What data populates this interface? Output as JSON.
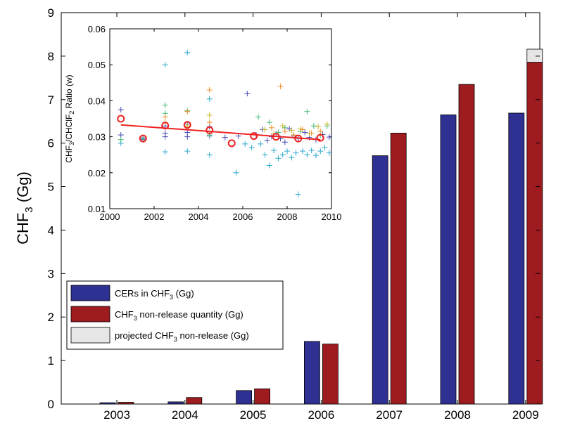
{
  "chart_data": [
    {
      "type": "bar",
      "ylabel_main": "CHF",
      "ylabel_sub": "3",
      "ylabel_unit": " (Gg)",
      "categories": [
        "2003",
        "2004",
        "2005",
        "2006",
        "2007",
        "2008",
        "2009"
      ],
      "ylim": [
        0,
        9
      ],
      "yticks": [
        "0",
        "1",
        "2",
        "3",
        "4",
        "5",
        "6",
        "7",
        "8",
        "9"
      ],
      "series": [
        {
          "name": "CERs in CHF3 (Gg)",
          "color": "#2e3192",
          "values": [
            0.03,
            0.05,
            0.31,
            1.44,
            5.71,
            6.65,
            6.69
          ]
        },
        {
          "name": "CHF3 non-release quantity (Gg)",
          "color": "#9e1b20",
          "values": [
            0.04,
            0.15,
            0.35,
            1.38,
            6.23,
            7.35,
            7.86
          ]
        },
        {
          "name": "projected CHF3 non-release (Gg)",
          "color": "#e6e6e6",
          "stacked_on": "CHF3 non-release quantity (Gg)",
          "values": [
            0,
            0,
            0,
            0,
            0,
            0,
            0.3
          ]
        }
      ],
      "legend": {
        "placement": "lower-left",
        "items": [
          {
            "pre": "CERs in CHF",
            "sub": "3",
            "post": " (Gg)",
            "color": "#2e3192"
          },
          {
            "pre": "CHF",
            "sub": "3",
            "post": " non-release quantity (Gg)",
            "color": "#9e1b20"
          },
          {
            "pre": "projected CHF",
            "sub": "3",
            "post": " non-release (Gg)",
            "color": "#e6e6e6"
          }
        ]
      }
    },
    {
      "type": "scatter",
      "inset": true,
      "ylabel": "CHF3/CHClF2 Ratio (w)",
      "ylabel_parts": [
        {
          "t": "CHF",
          "sub": false
        },
        {
          "t": "3",
          "sub": true
        },
        {
          "t": "/CHClF",
          "sub": false
        },
        {
          "t": "2",
          "sub": true
        },
        {
          "t": " Ratio (w)",
          "sub": false
        }
      ],
      "xlim": [
        2000,
        2010
      ],
      "ylim": [
        0.01,
        0.06
      ],
      "xticks": [
        "2000",
        "2002",
        "2004",
        "2006",
        "2008",
        "2010"
      ],
      "yticks": [
        "0.01",
        "0.02",
        "0.03",
        "0.04",
        "0.05",
        "0.06"
      ],
      "trend_line": {
        "color": "#ee2222",
        "x": [
          2000.5,
          2009.5
        ],
        "y": [
          0.0333,
          0.0292
        ]
      },
      "annual_means": {
        "color": "#ee2222",
        "x": [
          2000.5,
          2001.5,
          2002.5,
          2003.5,
          2004.5,
          2005.5,
          2006.5,
          2007.5,
          2008.5,
          2009.5
        ],
        "y": [
          0.035,
          0.0295,
          0.0331,
          0.0333,
          0.0318,
          0.0282,
          0.0302,
          0.03,
          0.0295,
          0.0297
        ]
      },
      "points": [
        {
          "color": "#4646b4",
          "x": [
            2000.5,
            2000.5,
            2001.5,
            2001.5,
            2002.5,
            2002.5,
            2002.5,
            2003.5,
            2003.5,
            2003.5,
            2004.5,
            2004.5,
            2005.2,
            2005.8,
            2006.2,
            2006.6,
            2006.9,
            2007.1,
            2007.3,
            2007.5,
            2007.7,
            2007.9,
            2008.1,
            2008.3,
            2008.5,
            2008.8,
            2009.0,
            2009.3,
            2009.6,
            2009.9
          ],
          "y": [
            0.0375,
            0.0305,
            0.0297,
            0.0292,
            0.033,
            0.031,
            0.03,
            0.0335,
            0.0312,
            0.03,
            0.0328,
            0.0302,
            0.0298,
            0.0302,
            0.042,
            0.0305,
            0.032,
            0.029,
            0.03,
            0.0308,
            0.0295,
            0.0285,
            0.0322,
            0.0302,
            0.0295,
            0.0312,
            0.0298,
            0.0292,
            0.0306,
            0.0299
          ]
        },
        {
          "color": "#2aa8cc",
          "x": [
            2000.5,
            2002.5,
            2002.5,
            2003.5,
            2003.5,
            2004.5,
            2004.5,
            2005.7,
            2006.1,
            2006.4,
            2006.8,
            2007.0,
            2007.2,
            2007.4,
            2007.6,
            2007.8,
            2008.0,
            2008.2,
            2008.4,
            2008.5,
            2008.7,
            2008.9,
            2009.1,
            2009.3,
            2009.5,
            2009.7,
            2009.9
          ],
          "y": [
            0.0282,
            0.05,
            0.0258,
            0.0534,
            0.026,
            0.0405,
            0.025,
            0.02,
            0.028,
            0.027,
            0.028,
            0.025,
            0.022,
            0.0262,
            0.024,
            0.025,
            0.026,
            0.0242,
            0.0255,
            0.014,
            0.026,
            0.025,
            0.0262,
            0.0248,
            0.026,
            0.027,
            0.0255
          ]
        },
        {
          "color": "#44bb77",
          "x": [
            2000.5,
            2001.5,
            2002.5,
            2002.5,
            2003.5,
            2004.5,
            2006.7,
            2007.2,
            2007.6,
            2007.9,
            2008.3,
            2008.6,
            2008.9,
            2009.2,
            2009.5,
            2009.8
          ],
          "y": [
            0.0292,
            0.0294,
            0.0388,
            0.0365,
            0.0372,
            0.0305,
            0.0355,
            0.034,
            0.0312,
            0.0325,
            0.0305,
            0.0315,
            0.037,
            0.033,
            0.0305,
            0.033
          ]
        },
        {
          "color": "#c8b41e",
          "x": [
            2002.5,
            2003.5,
            2004.5,
            2007.0,
            2007.4,
            2007.8,
            2008.2,
            2008.6,
            2009.0,
            2009.4,
            2009.8
          ],
          "y": [
            0.034,
            0.033,
            0.036,
            0.032,
            0.0308,
            0.033,
            0.0318,
            0.0322,
            0.031,
            0.0328,
            0.0335
          ]
        },
        {
          "color": "#f08c28",
          "x": [
            2002.5,
            2003.5,
            2004.5,
            2004.5,
            2007.7,
            2007.3,
            2007.9,
            2008.3,
            2008.7,
            2009.1,
            2009.5
          ],
          "y": [
            0.0355,
            0.037,
            0.043,
            0.034,
            0.044,
            0.0325,
            0.0315,
            0.0305,
            0.032,
            0.031,
            0.0315
          ]
        }
      ]
    }
  ]
}
